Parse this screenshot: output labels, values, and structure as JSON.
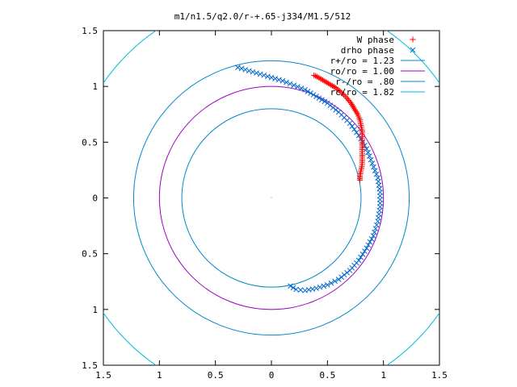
{
  "chart_data": {
    "type": "scatter",
    "title": "m1/n1.5/q2.0/r-+.65-j334/M1.5/512",
    "xlim": [
      -1.5,
      1.5
    ],
    "ylim": [
      -1.5,
      1.5
    ],
    "x_ticks": [
      -1.5,
      -1,
      -0.5,
      0,
      0.5,
      1,
      1.5
    ],
    "y_ticks": [
      -1.5,
      -1,
      -0.5,
      0,
      0.5,
      1,
      1.5
    ],
    "x_tick_labels": [
      "1.5",
      "1",
      "0.5",
      "0",
      "0.5",
      "1",
      "1.5"
    ],
    "y_tick_labels": [
      "1.5",
      "1",
      "0.5",
      "0",
      "0.5",
      "1",
      "1.5"
    ],
    "grid": false,
    "legend_position": "top-right",
    "colors": {
      "w_phase": "#ff0000",
      "drho_phase": "#0066cc",
      "r_plus": "#0088cc",
      "r_o": "#a000c0",
      "r_minus": "#0088cc",
      "r_c": "#00bbd8"
    },
    "series": [
      {
        "name": "W phase",
        "kind": "points",
        "marker": "plus",
        "color": "#ff0000",
        "points": [
          [
            0.79,
            0.16
          ],
          [
            0.79,
            0.2
          ],
          [
            0.8,
            0.25
          ],
          [
            0.81,
            0.3
          ],
          [
            0.81,
            0.35
          ],
          [
            0.81,
            0.4
          ],
          [
            0.81,
            0.45
          ],
          [
            0.81,
            0.5
          ],
          [
            0.81,
            0.55
          ],
          [
            0.81,
            0.6
          ],
          [
            0.8,
            0.65
          ],
          [
            0.79,
            0.7
          ],
          [
            0.77,
            0.75
          ],
          [
            0.74,
            0.8
          ],
          [
            0.71,
            0.85
          ],
          [
            0.67,
            0.9
          ],
          [
            0.62,
            0.95
          ],
          [
            0.57,
            0.99
          ],
          [
            0.52,
            1.02
          ],
          [
            0.47,
            1.05
          ],
          [
            0.42,
            1.08
          ],
          [
            0.38,
            1.1
          ]
        ]
      },
      {
        "name": "drho phase",
        "kind": "points",
        "marker": "x",
        "color": "#0066cc",
        "points": [
          [
            -0.3,
            1.17
          ],
          [
            -0.2,
            1.14
          ],
          [
            -0.1,
            1.11
          ],
          [
            0,
            1.08
          ],
          [
            0.1,
            1.05
          ],
          [
            0.2,
            1.01
          ],
          [
            0.3,
            0.97
          ],
          [
            0.4,
            0.91
          ],
          [
            0.5,
            0.85
          ],
          [
            0.6,
            0.77
          ],
          [
            0.7,
            0.67
          ],
          [
            0.78,
            0.56
          ],
          [
            0.85,
            0.44
          ],
          [
            0.9,
            0.31
          ],
          [
            0.95,
            0.18
          ],
          [
            0.97,
            0.05
          ],
          [
            0.97,
            -0.08
          ],
          [
            0.95,
            -0.21
          ],
          [
            0.91,
            -0.34
          ],
          [
            0.85,
            -0.45
          ],
          [
            0.78,
            -0.56
          ],
          [
            0.7,
            -0.65
          ],
          [
            0.6,
            -0.73
          ],
          [
            0.5,
            -0.78
          ],
          [
            0.4,
            -0.81
          ],
          [
            0.3,
            -0.83
          ],
          [
            0.22,
            -0.82
          ],
          [
            0.17,
            -0.79
          ]
        ]
      },
      {
        "name": "r+/ro = 1.23",
        "kind": "circle",
        "radius": 1.23,
        "color": "#0088cc"
      },
      {
        "name": "ro/ro = 1.00",
        "kind": "circle",
        "radius": 1.0,
        "color": "#a000c0"
      },
      {
        "name": "r-/ro = .80",
        "kind": "circle",
        "radius": 0.8,
        "color": "#0088cc"
      },
      {
        "name": "rc/ro = 1.82",
        "kind": "circle",
        "radius": 1.82,
        "color": "#00bbd8"
      }
    ]
  }
}
